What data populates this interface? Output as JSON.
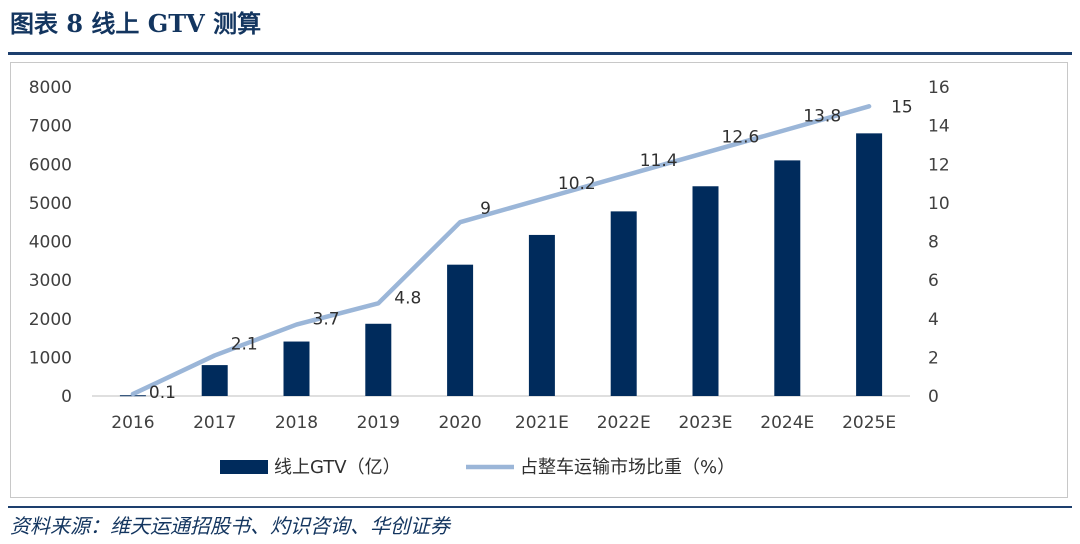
{
  "figure": {
    "title": "图表 8   线上 GTV 测算",
    "source": "资料来源：维天运通招股书、灼识咨询、华创证券"
  },
  "colors": {
    "bar": "#002b5c",
    "line": "#9bb6d8",
    "title": "#13355f"
  },
  "chart_data": {
    "type": "bar",
    "title": "线上 GTV 测算",
    "categories": [
      "2016",
      "2017",
      "2018",
      "2019",
      "2020",
      "2021E",
      "2022E",
      "2023E",
      "2024E",
      "2025E"
    ],
    "series": [
      {
        "name": "线上GTV（亿）",
        "type": "bar",
        "axis": "left",
        "values": [
          20,
          800,
          1410,
          1870,
          3400,
          4170,
          4780,
          5430,
          6100,
          6800
        ]
      },
      {
        "name": "占整车运输市场比重（%）",
        "type": "line",
        "axis": "right",
        "values": [
          0.1,
          2.1,
          3.7,
          4.8,
          9,
          10.2,
          11.4,
          12.6,
          13.8,
          15
        ],
        "labels": [
          "0.1",
          "2.1",
          "3.7",
          "4.8",
          "9",
          "10.2",
          "11.4",
          "12.6",
          "13.8",
          "15"
        ]
      }
    ],
    "y_left": {
      "min": 0,
      "max": 8000,
      "ticks": [
        "0",
        "1000",
        "2000",
        "3000",
        "4000",
        "5000",
        "6000",
        "7000",
        "8000"
      ]
    },
    "y_right": {
      "min": 0,
      "max": 16,
      "ticks": [
        "0",
        "2",
        "4",
        "6",
        "8",
        "10",
        "12",
        "14",
        "16"
      ]
    },
    "legend": {
      "position": "bottom",
      "bar_label": "线上GTV（亿）",
      "line_label": "占整车运输市场比重（%）"
    },
    "grid": false
  }
}
